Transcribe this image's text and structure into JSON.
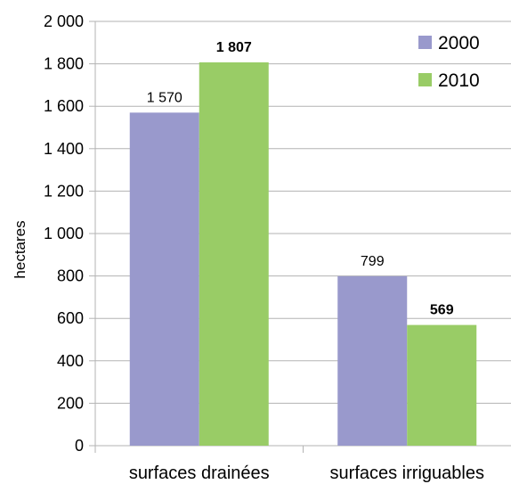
{
  "chart_data": {
    "type": "bar",
    "categories": [
      "surfaces drainées",
      "surfaces irriguables"
    ],
    "series": [
      {
        "name": "2000",
        "values": [
          1570,
          799
        ],
        "color": "#9999cc",
        "labels": [
          "1 570",
          "799"
        ],
        "label_bold": false
      },
      {
        "name": "2010",
        "values": [
          1807,
          569
        ],
        "color": "#99cc66",
        "labels": [
          "1 807",
          "569"
        ],
        "label_bold": true
      }
    ],
    "ylabel": "hectares",
    "xlabel": "",
    "ylim": [
      0,
      2000
    ],
    "y_ticks": [
      0,
      200,
      400,
      600,
      800,
      1000,
      1200,
      1400,
      1600,
      1800,
      2000
    ],
    "y_tick_labels": [
      "0",
      "200",
      "400",
      "600",
      "800",
      "1 000",
      "1 200",
      "1 400",
      "1 600",
      "1 800",
      "2 000"
    ],
    "grid": true,
    "grid_color": "#b3b3b3",
    "legend_position": "top-right"
  }
}
